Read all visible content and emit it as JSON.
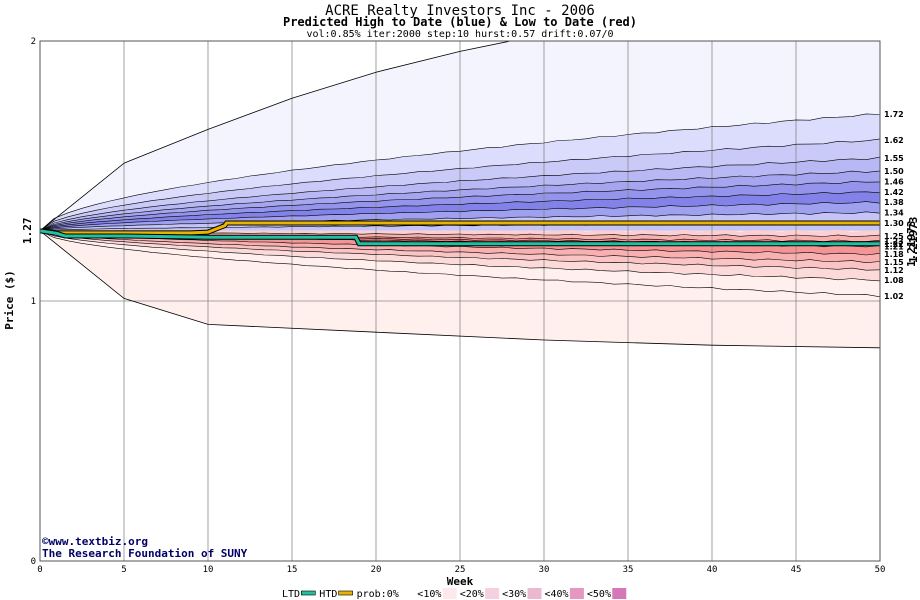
{
  "chart_data": {
    "type": "area",
    "title": "ACRE Realty Investors Inc - 2006",
    "subtitle": "Predicted High to Date (blue) &  Low to Date (red)",
    "params": "vol:0.85% iter:2000 step:10 hurst:0.57 drift:0.07/0",
    "xlabel": "Week",
    "ylabel": "Price ($)",
    "xlim": [
      0,
      50
    ],
    "ylim": [
      0,
      2
    ],
    "x_ticks": [
      0,
      5,
      10,
      15,
      20,
      25,
      30,
      35,
      40,
      45,
      50
    ],
    "y_ticks": [
      0,
      1,
      2
    ],
    "start_price": "1.27",
    "start_value": 1.27,
    "right_value_label": "1.21973",
    "right_value": 1.21973,
    "credits": [
      "©www.textbiz.org",
      "The Research Foundation of SUNY"
    ],
    "high_bands": [
      {
        "label": "1.72",
        "end": 1.72,
        "outer": true
      },
      {
        "label": "1.62",
        "end": 1.62
      },
      {
        "label": "1.55",
        "end": 1.55
      },
      {
        "label": "1.50",
        "end": 1.5
      },
      {
        "label": "1.46",
        "end": 1.46
      },
      {
        "label": "1.42",
        "end": 1.42
      },
      {
        "label": "1.38",
        "end": 1.38
      },
      {
        "label": "1.34",
        "end": 1.34
      },
      {
        "label": "1.30",
        "end": 1.3
      }
    ],
    "low_bands": [
      {
        "label": "1.25",
        "end": 1.25
      },
      {
        "label": "1.23",
        "end": 1.23
      },
      {
        "label": "1.22",
        "end": 1.22
      },
      {
        "label": "1.21",
        "end": 1.21
      },
      {
        "label": "1.18",
        "end": 1.18
      },
      {
        "label": "1.15",
        "end": 1.15
      },
      {
        "label": "1.12",
        "end": 1.12
      },
      {
        "label": "1.08",
        "end": 1.08
      },
      {
        "label": "1.02",
        "end": 1.02
      }
    ],
    "outer_high_path": {
      "x": [
        0,
        5,
        10,
        15,
        20,
        25,
        28
      ],
      "y": [
        1.27,
        1.53,
        1.66,
        1.78,
        1.88,
        1.96,
        2.0
      ]
    },
    "outer_low_path": {
      "x": [
        0,
        5,
        10,
        20,
        30,
        40,
        50
      ],
      "y": [
        1.27,
        1.01,
        0.91,
        0.88,
        0.85,
        0.83,
        0.82
      ]
    },
    "series": [
      {
        "name": "HTD",
        "color": "#e8b400",
        "x": [
          0,
          1,
          2,
          3,
          4,
          5,
          6,
          7,
          8,
          9,
          10,
          11,
          11.1,
          12,
          20,
          30,
          40,
          50
        ],
        "y": [
          1.27,
          1.262,
          1.262,
          1.262,
          1.262,
          1.262,
          1.262,
          1.262,
          1.262,
          1.262,
          1.265,
          1.29,
          1.3,
          1.3,
          1.3,
          1.3,
          1.3,
          1.3
        ]
      },
      {
        "name": "LTD",
        "color": "#20c0a0",
        "x": [
          0,
          1,
          1.5,
          5,
          10,
          15,
          18.8,
          19,
          30,
          40,
          50
        ],
        "y": [
          1.27,
          1.26,
          1.25,
          1.25,
          1.245,
          1.245,
          1.245,
          1.22,
          1.22,
          1.22,
          1.22
        ]
      }
    ],
    "legend": {
      "items": [
        {
          "label": "LTD",
          "color": "#20c0a0",
          "kind": "line"
        },
        {
          "label": "HTD",
          "color": "#e8b400",
          "kind": "line"
        },
        {
          "label": "prob:0%",
          "color": "#ffffff",
          "kind": "swatch"
        },
        {
          "label": "<10%",
          "color": "#fde8ec",
          "kind": "swatch"
        },
        {
          "label": "<20%",
          "color": "#f4d0e0",
          "kind": "swatch"
        },
        {
          "label": "<30%",
          "color": "#ecb8d0",
          "kind": "swatch"
        },
        {
          "label": "<40%",
          "color": "#e498c0",
          "kind": "swatch"
        },
        {
          "label": "<50%",
          "color": "#d478b8",
          "kind": "swatch"
        }
      ]
    },
    "colors": {
      "blue_bands": [
        "#f4f4ff",
        "#dcdcfc",
        "#cacaf8",
        "#b8b8f4",
        "#a6a6f0",
        "#9494ec",
        "#8282e8",
        "#a0a0f0",
        "#c4c4f8"
      ],
      "red_bands": [
        "#fcd0d0",
        "#f8b0b0",
        "#f49494",
        "#f08080",
        "#f49494",
        "#f8b0b0",
        "#fbc4c4",
        "#fcdada",
        "#fff0ee"
      ],
      "start_label": "#006600",
      "right_label_primary": "#00a060",
      "right_label_secondary": "#c07000",
      "credit": "#000066"
    }
  }
}
